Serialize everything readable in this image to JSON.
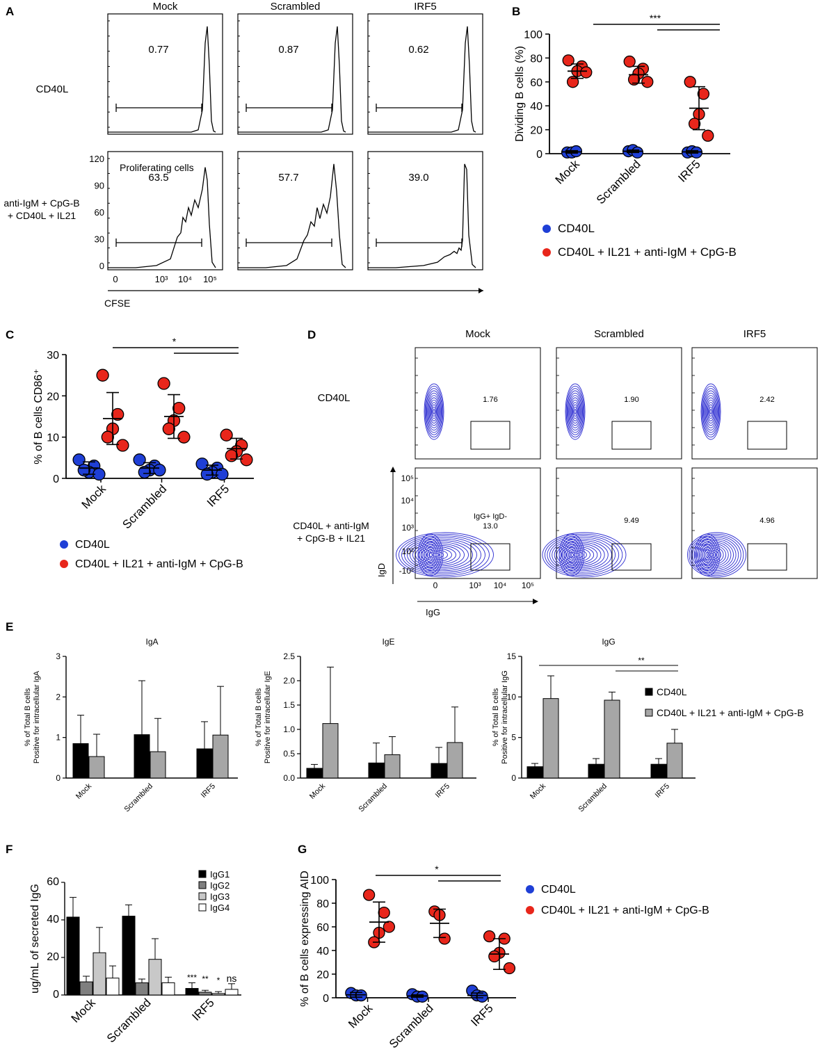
{
  "colors": {
    "blue": "#1f3fd6",
    "red": "#e8261b",
    "contour": "#2a2ad0",
    "black_bar": "#000000",
    "gray_bar": "#a6a6a6",
    "dark_gray_bar": "#7f7f7f",
    "light_gray_bar": "#c8c8c8",
    "white_bar": "#ffffff"
  },
  "panel_letters": [
    "A",
    "B",
    "C",
    "D",
    "E",
    "F",
    "G"
  ],
  "panelA": {
    "columns": [
      "Mock",
      "Scrambled",
      "IRF5"
    ],
    "rows": [
      "CD40L",
      "anti-IgM + CpG-B\n+ CD40L + IL21"
    ],
    "values_row1": [
      "0.77",
      "0.87",
      "0.62"
    ],
    "values_row2": [
      "63.5",
      "57.7",
      "39.0"
    ],
    "gate_title": "Proliferating cells",
    "y_ticks": [
      "120",
      "90",
      "60",
      "30",
      "0"
    ],
    "x_ticks": [
      "0",
      "10³",
      "10⁴",
      "10⁵"
    ],
    "x_label": "CFSE"
  },
  "panelD": {
    "columns": [
      "Mock",
      "Scrambled",
      "IRF5"
    ],
    "rows": [
      "CD40L",
      "CD40L + anti-IgM\n+ CpG-B + IL21"
    ],
    "values_row1": [
      "1.76",
      "1.90",
      "2.42"
    ],
    "values_row2": [
      "IgG+ IgD-\n13.0",
      "9.49",
      "4.96"
    ],
    "y_ticks": [
      "10⁵",
      "10⁴",
      "10³",
      "10²",
      "-10²"
    ],
    "x_ticks": [
      "0",
      "10³",
      "10⁴",
      "10⁵"
    ],
    "x_label": "IgG",
    "y_label": "IgD"
  },
  "chart_data": [
    {
      "panel": "B",
      "type": "scatter",
      "ylabel": "Dividing B cells (%)",
      "ylim": [
        0,
        100
      ],
      "yticks": [
        0,
        20,
        40,
        60,
        80,
        100
      ],
      "categories": [
        "Mock",
        "Scrambled",
        "IRF5"
      ],
      "series": [
        {
          "name": "CD40L",
          "color": "blue",
          "points": [
            [
              1,
              1,
              2
            ],
            [
              2,
              3,
              1
            ],
            [
              1,
              2,
              1
            ]
          ],
          "mean": [
            1.5,
            2,
            1.5
          ],
          "sd": [
            1,
            1,
            1
          ]
        },
        {
          "name": "CD40L + IL21 + anti-IgM + CpG-B",
          "color": "red",
          "points": [
            [
              78,
              73,
              69,
              60,
              68
            ],
            [
              77,
              71,
              67,
              62,
              60
            ],
            [
              60,
              50,
              33,
              25,
              15
            ]
          ],
          "mean": [
            69,
            66,
            38
          ],
          "sd": [
            6,
            7,
            18
          ]
        }
      ],
      "significance": {
        "label": "***",
        "comparisons": [
          [
            "Mock",
            "IRF5"
          ],
          [
            "Scrambled",
            "IRF5"
          ]
        ]
      },
      "legend": [
        "CD40L",
        "CD40L + IL21 + anti-IgM + CpG-B"
      ]
    },
    {
      "panel": "C",
      "type": "scatter",
      "ylabel": "% of B cells CD86⁺",
      "ylim": [
        0,
        30
      ],
      "yticks": [
        0,
        10,
        20,
        30
      ],
      "categories": [
        "Mock",
        "Scrambled",
        "IRF5"
      ],
      "series": [
        {
          "name": "CD40L",
          "color": "blue",
          "points": [
            [
              4.5,
              3,
              1.5,
              2,
              1
            ],
            [
              4.5,
              3,
              2,
              1.5,
              2
            ],
            [
              3.5,
              2.5,
              1.5,
              1,
              1
            ]
          ],
          "mean": [
            2.5,
            2.5,
            2
          ],
          "sd": [
            1.5,
            1.3,
            1.2
          ]
        },
        {
          "name": "CD40L + IL21 + anti-IgM + CpG-B",
          "color": "red",
          "points": [
            [
              25,
              15.5,
              12,
              10,
              8
            ],
            [
              23,
              17,
              14,
              12,
              10
            ],
            [
              10.5,
              8,
              6.5,
              5.5,
              4.5
            ]
          ],
          "mean": [
            14.5,
            15,
            7.2
          ],
          "sd": [
            6.3,
            5.3,
            2.5
          ]
        }
      ],
      "significance": {
        "label": "*",
        "comparisons": [
          [
            "Mock",
            "IRF5"
          ],
          [
            "Scrambled",
            "IRF5"
          ]
        ]
      },
      "legend": [
        "CD40L",
        "CD40L + IL21 + anti-IgM + CpG-B"
      ]
    },
    {
      "panel": "E-IgA",
      "type": "bar",
      "title": "IgA",
      "ylabel": "% of Total B cells\nPositive for intracellular IgA",
      "ylim": [
        0,
        3
      ],
      "yticks": [
        0,
        1,
        2,
        3
      ],
      "categories": [
        "Mock",
        "Scrambled",
        "IRF5"
      ],
      "series": [
        {
          "name": "CD40L",
          "values": [
            0.85,
            1.07,
            0.72
          ],
          "err": [
            0.7,
            1.33,
            0.67
          ]
        },
        {
          "name": "CD40L + IL21 + anti-IgM + CpG-B",
          "values": [
            0.53,
            0.65,
            1.06
          ],
          "err": [
            0.55,
            0.82,
            1.2
          ]
        }
      ]
    },
    {
      "panel": "E-IgE",
      "type": "bar",
      "title": "IgE",
      "ylabel": "% of Total B cells\nPositive for intracellular IgE",
      "ylim": [
        0,
        2.5
      ],
      "yticks": [
        0.0,
        0.5,
        1.0,
        1.5,
        2.0,
        2.5
      ],
      "ytick_labels": [
        "0.0",
        "0.5",
        "1.0",
        "1.5",
        "2.0",
        "2.5"
      ],
      "categories": [
        "Mock",
        "Scrambled",
        "IRF5"
      ],
      "series": [
        {
          "name": "CD40L",
          "values": [
            0.2,
            0.31,
            0.3
          ],
          "err": [
            0.08,
            0.41,
            0.33
          ]
        },
        {
          "name": "CD40L + IL21 + anti-IgM + CpG-B",
          "values": [
            1.12,
            0.48,
            0.73
          ],
          "err": [
            1.16,
            0.37,
            0.73
          ]
        }
      ]
    },
    {
      "panel": "E-IgG",
      "type": "bar",
      "title": "IgG",
      "ylabel": "% of Total B cells\nPositive for intracellular IgG",
      "ylim": [
        0,
        15
      ],
      "yticks": [
        0,
        5,
        10,
        15
      ],
      "categories": [
        "Mock",
        "Scrambled",
        "IRF5"
      ],
      "series": [
        {
          "name": "CD40L",
          "values": [
            1.4,
            1.7,
            1.7
          ],
          "err": [
            0.4,
            0.7,
            0.7
          ]
        },
        {
          "name": "CD40L + IL21 + anti-IgM + CpG-B",
          "values": [
            9.8,
            9.6,
            4.3
          ],
          "err": [
            2.8,
            1.0,
            1.7
          ]
        }
      ],
      "significance": {
        "label": "**",
        "comparisons": [
          [
            "Mock",
            "IRF5"
          ],
          [
            "Scrambled",
            "IRF5"
          ]
        ]
      },
      "legend": [
        "CD40L",
        "CD40L + IL21 + anti-IgM + CpG-B"
      ]
    },
    {
      "panel": "F",
      "type": "bar",
      "ylabel": "ug/mL of secreted IgG",
      "ylim": [
        0,
        60
      ],
      "yticks": [
        0,
        20,
        40,
        60
      ],
      "categories": [
        "Mock",
        "Scrambled",
        "IRF5"
      ],
      "series": [
        {
          "name": "IgG1",
          "values": [
            41.5,
            42,
            3.5
          ],
          "err": [
            10.5,
            6,
            3
          ]
        },
        {
          "name": "IgG2",
          "values": [
            7,
            6.5,
            1.5
          ],
          "err": [
            3,
            2,
            1
          ]
        },
        {
          "name": "IgG3",
          "values": [
            22.5,
            19,
            0.8
          ],
          "err": [
            13.5,
            11,
            1
          ]
        },
        {
          "name": "IgG4",
          "values": [
            9,
            6.5,
            3
          ],
          "err": [
            6.5,
            3,
            3
          ]
        }
      ],
      "annotations": [
        "***",
        "**",
        "*",
        "ns"
      ],
      "legend": [
        "IgG1",
        "IgG2",
        "IgG3",
        "IgG4"
      ]
    },
    {
      "panel": "G",
      "type": "scatter",
      "ylabel": "% of B cells expressing AID",
      "ylim": [
        0,
        100
      ],
      "yticks": [
        0,
        20,
        40,
        60,
        80,
        100
      ],
      "categories": [
        "Mock",
        "Scrambled",
        "IRF5"
      ],
      "series": [
        {
          "name": "CD40L",
          "color": "blue",
          "points": [
            [
              4,
              2,
              2
            ],
            [
              3,
              1,
              1
            ],
            [
              6,
              2,
              1
            ]
          ],
          "mean": [
            2.5,
            1.5,
            2
          ],
          "sd": [
            2,
            1,
            2
          ]
        },
        {
          "name": "CD40L + IL21 + anti-IgM + CpG-B",
          "color": "red",
          "points": [
            [
              87,
              72,
              55,
              47,
              60
            ],
            [
              73,
              70,
              50
            ],
            [
              52,
              50,
              38,
              35,
              25
            ]
          ],
          "mean": [
            64,
            63,
            37
          ],
          "sd": [
            17,
            12,
            13
          ]
        }
      ],
      "significance": {
        "label": "*",
        "comparisons": [
          [
            "Mock",
            "IRF5"
          ],
          [
            "Scrambled",
            "IRF5"
          ]
        ]
      },
      "legend": [
        "CD40L",
        "CD40L + IL21 + anti-IgM + CpG-B"
      ]
    }
  ]
}
